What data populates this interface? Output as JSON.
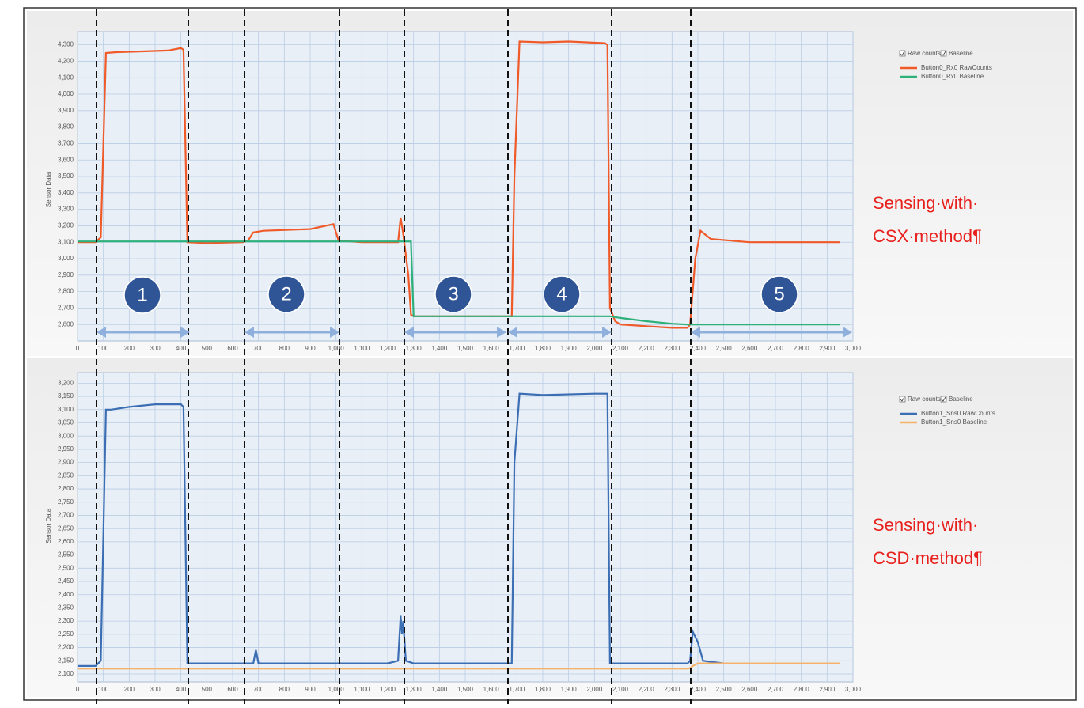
{
  "chart_data": [
    {
      "type": "line",
      "ylabel": "Sensor Data",
      "legend_options": [
        "Raw counts",
        "Baseline"
      ],
      "regions": [
        "1",
        "2",
        "3",
        "4",
        "5"
      ],
      "annotations": [
        "Sensing·with·",
        "CSX·method¶"
      ],
      "xlim": [
        0,
        3000
      ],
      "ylim": [
        2500,
        4380
      ],
      "grid": true,
      "xticks": [
        0,
        100,
        200,
        300,
        400,
        500,
        600,
        700,
        800,
        900,
        {
          "value": 1000,
          "label": "1,000"
        },
        {
          "value": 1100,
          "label": "1,100"
        },
        {
          "value": 1200,
          "label": "1,200"
        },
        {
          "value": 1300,
          "label": "1,300"
        },
        {
          "value": 1400,
          "label": "1,400"
        },
        {
          "value": 1500,
          "label": "1,500"
        },
        {
          "value": 1600,
          "label": "1,600"
        },
        {
          "value": 1700,
          "label": "1,700"
        },
        {
          "value": 1800,
          "label": "1,800"
        },
        {
          "value": 1900,
          "label": "1,900"
        },
        {
          "value": 2000,
          "label": "2,000"
        },
        {
          "value": 2100,
          "label": "2,100"
        },
        {
          "value": 2200,
          "label": "2,200"
        },
        {
          "value": 2300,
          "label": "2,300"
        },
        {
          "value": 2400,
          "label": "2,400"
        },
        {
          "value": 2500,
          "label": "2,500"
        },
        {
          "value": 2600,
          "label": "2,600"
        },
        {
          "value": 2700,
          "label": "2,700"
        },
        {
          "value": 2800,
          "label": "2,800"
        },
        {
          "value": 2900,
          "label": "2,900"
        },
        {
          "value": 3000,
          "label": "3,000"
        }
      ],
      "yticks": [
        {
          "value": 2600,
          "label": "2,600"
        },
        {
          "value": 2700,
          "label": "2,700"
        },
        {
          "value": 2800,
          "label": "2,800"
        },
        {
          "value": 2900,
          "label": "2,900"
        },
        {
          "value": 3000,
          "label": "3,000"
        },
        {
          "value": 3100,
          "label": "3,100"
        },
        {
          "value": 3200,
          "label": "3,200"
        },
        {
          "value": 3300,
          "label": "3,300"
        },
        {
          "value": 3400,
          "label": "3,400"
        },
        {
          "value": 3500,
          "label": "3,500"
        },
        {
          "value": 3600,
          "label": "3,600"
        },
        {
          "value": 3700,
          "label": "3,700"
        },
        {
          "value": 3800,
          "label": "3,800"
        },
        {
          "value": 3900,
          "label": "3,900"
        },
        {
          "value": 4000,
          "label": "4,000"
        },
        {
          "value": 4100,
          "label": "4,100"
        },
        {
          "value": 4200,
          "label": "4,200"
        },
        {
          "value": 4300,
          "label": "4,300"
        }
      ],
      "x": [
        0,
        70,
        90,
        110,
        150,
        250,
        350,
        400,
        410,
        425,
        500,
        640,
        660,
        680,
        720,
        900,
        960,
        990,
        1010,
        1100,
        1240,
        1250,
        1260,
        1280,
        1290,
        1300,
        1500,
        1680,
        1690,
        1710,
        1800,
        1900,
        2040,
        2050,
        2060,
        2080,
        2100,
        2200,
        2300,
        2360,
        2370,
        2390,
        2410,
        2450,
        2600,
        2800,
        2950
      ],
      "series": [
        {
          "name": "Button0_Rx0 RawCounts",
          "color": "#f05a28",
          "values": [
            3100,
            3100,
            3130,
            4250,
            4255,
            4260,
            4265,
            4280,
            4270,
            3100,
            3095,
            3100,
            3110,
            3160,
            3170,
            3180,
            3200,
            3210,
            3110,
            3100,
            3100,
            3250,
            3150,
            2900,
            2660,
            2650,
            2650,
            2650,
            3500,
            4320,
            4315,
            4320,
            4310,
            4300,
            2700,
            2620,
            2600,
            2590,
            2580,
            2580,
            2600,
            3000,
            3170,
            3120,
            3100,
            3100,
            3100
          ]
        },
        {
          "name": "Button0_Rx0 Baseline",
          "color": "#2eb07a",
          "values": [
            3105,
            3105,
            3105,
            3105,
            3105,
            3105,
            3105,
            3105,
            3105,
            3105,
            3105,
            3105,
            3105,
            3105,
            3105,
            3105,
            3105,
            3105,
            3105,
            3105,
            3105,
            3105,
            3105,
            3105,
            3105,
            2650,
            2650,
            2650,
            2650,
            2650,
            2650,
            2650,
            2650,
            2650,
            2650,
            2645,
            2640,
            2620,
            2605,
            2600,
            2600,
            2600,
            2600,
            2600,
            2600,
            2600,
            2600
          ]
        }
      ]
    },
    {
      "type": "line",
      "ylabel": "Sensor Data",
      "legend_options": [
        "Raw counts",
        "Baseline"
      ],
      "annotations": [
        "Sensing·with·",
        "CSD·method¶"
      ],
      "xlim": [
        0,
        3000
      ],
      "ylim": [
        2070,
        3240
      ],
      "grid": true,
      "xticks": [
        0,
        100,
        200,
        300,
        400,
        500,
        600,
        700,
        800,
        900,
        {
          "value": 1000,
          "label": "1,000"
        },
        {
          "value": 1100,
          "label": "1,100"
        },
        {
          "value": 1200,
          "label": "1,200"
        },
        {
          "value": 1300,
          "label": "1,300"
        },
        {
          "value": 1400,
          "label": "1,400"
        },
        {
          "value": 1500,
          "label": "1,500"
        },
        {
          "value": 1600,
          "label": "1,600"
        },
        {
          "value": 1700,
          "label": "1,700"
        },
        {
          "value": 1800,
          "label": "1,800"
        },
        {
          "value": 1900,
          "label": "1,900"
        },
        {
          "value": 2000,
          "label": "2,000"
        },
        {
          "value": 2100,
          "label": "2,100"
        },
        {
          "value": 2200,
          "label": "2,200"
        },
        {
          "value": 2300,
          "label": "2,300"
        },
        {
          "value": 2400,
          "label": "2,400"
        },
        {
          "value": 2500,
          "label": "2,500"
        },
        {
          "value": 2600,
          "label": "2,600"
        },
        {
          "value": 2700,
          "label": "2,700"
        },
        {
          "value": 2800,
          "label": "2,800"
        },
        {
          "value": 2900,
          "label": "2,900"
        },
        {
          "value": 3000,
          "label": "3,000"
        }
      ],
      "yticks": [
        {
          "value": 2100,
          "label": "2,100"
        },
        {
          "value": 2150,
          "label": "2,150"
        },
        {
          "value": 2200,
          "label": "2,200"
        },
        {
          "value": 2250,
          "label": "2,250"
        },
        {
          "value": 2300,
          "label": "2,300"
        },
        {
          "value": 2350,
          "label": "2,350"
        },
        {
          "value": 2400,
          "label": "2,400"
        },
        {
          "value": 2450,
          "label": "2,450"
        },
        {
          "value": 2500,
          "label": "2,500"
        },
        {
          "value": 2550,
          "label": "2,550"
        },
        {
          "value": 2600,
          "label": "2,600"
        },
        {
          "value": 2650,
          "label": "2,650"
        },
        {
          "value": 2700,
          "label": "2,700"
        },
        {
          "value": 2750,
          "label": "2,750"
        },
        {
          "value": 2800,
          "label": "2,800"
        },
        {
          "value": 2850,
          "label": "2,850"
        },
        {
          "value": 2900,
          "label": "2,900"
        },
        {
          "value": 2950,
          "label": "2,950"
        },
        {
          "value": 3000,
          "label": "3,000"
        },
        {
          "value": 3050,
          "label": "3,050"
        },
        {
          "value": 3100,
          "label": "3,100"
        },
        {
          "value": 3150,
          "label": "3,150"
        },
        {
          "value": 3200,
          "label": "3,200"
        }
      ],
      "x": [
        0,
        70,
        90,
        110,
        130,
        200,
        300,
        400,
        410,
        425,
        500,
        680,
        690,
        700,
        720,
        1200,
        1240,
        1250,
        1255,
        1260,
        1270,
        1300,
        1500,
        1680,
        1690,
        1710,
        1800,
        2000,
        2050,
        2060,
        2080,
        2200,
        2360,
        2370,
        2380,
        2400,
        2420,
        2500,
        2950
      ],
      "series": [
        {
          "name": "Button1_Sns0 RawCounts",
          "color": "#3c6eb4",
          "values": [
            2130,
            2130,
            2150,
            3100,
            3100,
            3110,
            3120,
            3120,
            3110,
            2140,
            2140,
            2140,
            2190,
            2140,
            2140,
            2140,
            2150,
            2320,
            2250,
            2300,
            2150,
            2140,
            2140,
            2140,
            2900,
            3160,
            3155,
            3160,
            3160,
            2140,
            2140,
            2140,
            2140,
            2150,
            2260,
            2220,
            2150,
            2140,
            2140
          ]
        },
        {
          "name": "Button1_Sns0 Baseline",
          "color": "#f5b26b",
          "values": [
            2120,
            2120,
            2120,
            2120,
            2120,
            2120,
            2120,
            2120,
            2120,
            2120,
            2120,
            2120,
            2120,
            2120,
            2120,
            2120,
            2120,
            2120,
            2120,
            2120,
            2120,
            2120,
            2120,
            2120,
            2120,
            2120,
            2120,
            2120,
            2120,
            2120,
            2120,
            2120,
            2120,
            2122,
            2130,
            2140,
            2140,
            2140,
            2140
          ]
        }
      ]
    }
  ]
}
